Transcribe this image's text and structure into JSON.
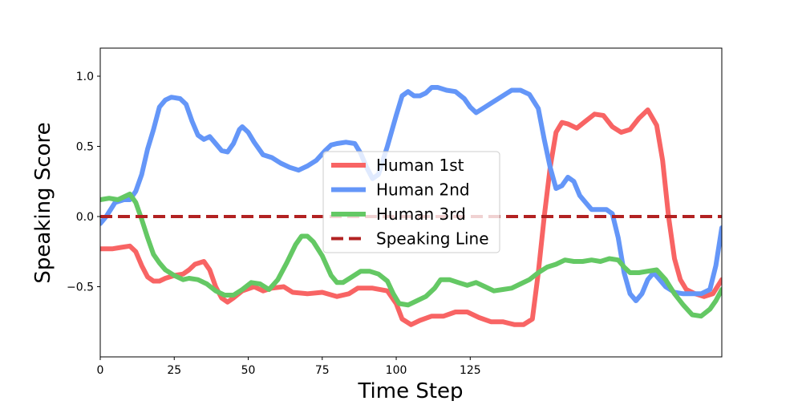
{
  "chart_data": {
    "type": "line",
    "title": "",
    "xlabel": "Time Step",
    "ylabel": "Speaking Score",
    "xlim": [
      0,
      210
    ],
    "ylim": [
      -1.0,
      1.2
    ],
    "x_ticks": [
      0,
      25,
      50,
      75,
      100,
      125
    ],
    "y_ticks": [
      -0.5,
      0.0,
      0.5,
      1.0
    ],
    "x_tick_labels": [
      "0",
      "25",
      "50",
      "75",
      "100",
      "125"
    ],
    "y_tick_labels": [
      "−0.5",
      "0.0",
      "0.5",
      "1.0"
    ],
    "grid": false,
    "legend_position": "center",
    "series": [
      {
        "name": "Human 1st",
        "color": "#f86464",
        "style": "solid",
        "points": [
          [
            0,
            -0.23
          ],
          [
            4,
            -0.23
          ],
          [
            7,
            -0.22
          ],
          [
            10,
            -0.21
          ],
          [
            12,
            -0.25
          ],
          [
            14,
            -0.35
          ],
          [
            16,
            -0.43
          ],
          [
            18,
            -0.46
          ],
          [
            20,
            -0.46
          ],
          [
            22,
            -0.44
          ],
          [
            25,
            -0.42
          ],
          [
            28,
            -0.41
          ],
          [
            30,
            -0.38
          ],
          [
            32,
            -0.34
          ],
          [
            35,
            -0.32
          ],
          [
            37,
            -0.38
          ],
          [
            39,
            -0.5
          ],
          [
            41,
            -0.58
          ],
          [
            43,
            -0.61
          ],
          [
            45,
            -0.58
          ],
          [
            48,
            -0.53
          ],
          [
            52,
            -0.5
          ],
          [
            55,
            -0.53
          ],
          [
            58,
            -0.51
          ],
          [
            62,
            -0.5
          ],
          [
            65,
            -0.54
          ],
          [
            70,
            -0.55
          ],
          [
            75,
            -0.54
          ],
          [
            80,
            -0.57
          ],
          [
            84,
            -0.55
          ],
          [
            87,
            -0.51
          ],
          [
            92,
            -0.51
          ],
          [
            97,
            -0.53
          ],
          [
            100,
            -0.62
          ],
          [
            102,
            -0.73
          ],
          [
            105,
            -0.77
          ],
          [
            108,
            -0.74
          ],
          [
            112,
            -0.71
          ],
          [
            116,
            -0.71
          ],
          [
            120,
            -0.68
          ],
          [
            124,
            -0.68
          ],
          [
            128,
            -0.72
          ],
          [
            132,
            -0.75
          ],
          [
            136,
            -0.75
          ],
          [
            140,
            -0.77
          ],
          [
            143,
            -0.77
          ],
          [
            146,
            -0.73
          ],
          [
            148,
            -0.4
          ],
          [
            150,
            0.0
          ],
          [
            152,
            0.35
          ],
          [
            154,
            0.6
          ],
          [
            156,
            0.67
          ],
          [
            158,
            0.66
          ],
          [
            161,
            0.63
          ],
          [
            164,
            0.68
          ],
          [
            167,
            0.73
          ],
          [
            170,
            0.72
          ],
          [
            173,
            0.64
          ],
          [
            176,
            0.6
          ],
          [
            179,
            0.62
          ],
          [
            182,
            0.7
          ],
          [
            185,
            0.76
          ],
          [
            188,
            0.65
          ],
          [
            190,
            0.4
          ],
          [
            192,
            0.0
          ],
          [
            194,
            -0.3
          ],
          [
            196,
            -0.45
          ],
          [
            198,
            -0.52
          ],
          [
            201,
            -0.55
          ],
          [
            204,
            -0.57
          ],
          [
            207,
            -0.55
          ],
          [
            210,
            -0.45
          ]
        ]
      },
      {
        "name": "Human 2nd",
        "color": "#6496f8",
        "style": "solid",
        "points": [
          [
            0,
            -0.05
          ],
          [
            2,
            0.0
          ],
          [
            5,
            0.1
          ],
          [
            8,
            0.12
          ],
          [
            10,
            0.12
          ],
          [
            12,
            0.18
          ],
          [
            14,
            0.3
          ],
          [
            16,
            0.48
          ],
          [
            18,
            0.62
          ],
          [
            20,
            0.78
          ],
          [
            22,
            0.83
          ],
          [
            24,
            0.85
          ],
          [
            27,
            0.84
          ],
          [
            29,
            0.8
          ],
          [
            31,
            0.68
          ],
          [
            33,
            0.58
          ],
          [
            35,
            0.55
          ],
          [
            37,
            0.57
          ],
          [
            39,
            0.52
          ],
          [
            41,
            0.47
          ],
          [
            43,
            0.46
          ],
          [
            45,
            0.52
          ],
          [
            47,
            0.62
          ],
          [
            48,
            0.64
          ],
          [
            50,
            0.6
          ],
          [
            52,
            0.53
          ],
          [
            55,
            0.44
          ],
          [
            58,
            0.42
          ],
          [
            61,
            0.38
          ],
          [
            64,
            0.35
          ],
          [
            67,
            0.33
          ],
          [
            70,
            0.36
          ],
          [
            73,
            0.4
          ],
          [
            76,
            0.47
          ],
          [
            78,
            0.51
          ],
          [
            80,
            0.52
          ],
          [
            83,
            0.53
          ],
          [
            86,
            0.52
          ],
          [
            88,
            0.45
          ],
          [
            90,
            0.35
          ],
          [
            92,
            0.27
          ],
          [
            94,
            0.3
          ],
          [
            97,
            0.5
          ],
          [
            100,
            0.72
          ],
          [
            102,
            0.86
          ],
          [
            104,
            0.89
          ],
          [
            106,
            0.86
          ],
          [
            108,
            0.86
          ],
          [
            110,
            0.88
          ],
          [
            112,
            0.92
          ],
          [
            114,
            0.92
          ],
          [
            117,
            0.9
          ],
          [
            120,
            0.89
          ],
          [
            123,
            0.84
          ],
          [
            125,
            0.78
          ],
          [
            127,
            0.74
          ],
          [
            130,
            0.78
          ],
          [
            133,
            0.82
          ],
          [
            136,
            0.86
          ],
          [
            139,
            0.9
          ],
          [
            142,
            0.9
          ],
          [
            145,
            0.87
          ],
          [
            148,
            0.77
          ],
          [
            150,
            0.55
          ],
          [
            152,
            0.35
          ],
          [
            154,
            0.2
          ],
          [
            156,
            0.22
          ],
          [
            158,
            0.28
          ],
          [
            160,
            0.25
          ],
          [
            162,
            0.15
          ],
          [
            164,
            0.1
          ],
          [
            166,
            0.05
          ],
          [
            168,
            0.05
          ],
          [
            171,
            0.05
          ],
          [
            173,
            0.02
          ],
          [
            175,
            -0.15
          ],
          [
            177,
            -0.4
          ],
          [
            179,
            -0.55
          ],
          [
            181,
            -0.6
          ],
          [
            183,
            -0.55
          ],
          [
            185,
            -0.45
          ],
          [
            187,
            -0.4
          ],
          [
            189,
            -0.45
          ],
          [
            191,
            -0.5
          ],
          [
            194,
            -0.54
          ],
          [
            197,
            -0.55
          ],
          [
            200,
            -0.55
          ],
          [
            203,
            -0.55
          ],
          [
            206,
            -0.52
          ],
          [
            208,
            -0.35
          ],
          [
            210,
            -0.08
          ]
        ]
      },
      {
        "name": "Human 3rd",
        "color": "#64c864",
        "style": "solid",
        "points": [
          [
            0,
            0.12
          ],
          [
            3,
            0.13
          ],
          [
            6,
            0.12
          ],
          [
            8,
            0.14
          ],
          [
            10,
            0.16
          ],
          [
            12,
            0.1
          ],
          [
            14,
            -0.02
          ],
          [
            16,
            -0.15
          ],
          [
            18,
            -0.27
          ],
          [
            20,
            -0.33
          ],
          [
            22,
            -0.38
          ],
          [
            25,
            -0.42
          ],
          [
            28,
            -0.45
          ],
          [
            30,
            -0.44
          ],
          [
            33,
            -0.45
          ],
          [
            36,
            -0.48
          ],
          [
            39,
            -0.53
          ],
          [
            42,
            -0.56
          ],
          [
            45,
            -0.56
          ],
          [
            48,
            -0.52
          ],
          [
            51,
            -0.47
          ],
          [
            54,
            -0.48
          ],
          [
            57,
            -0.52
          ],
          [
            60,
            -0.45
          ],
          [
            63,
            -0.33
          ],
          [
            66,
            -0.2
          ],
          [
            68,
            -0.14
          ],
          [
            70,
            -0.14
          ],
          [
            72,
            -0.18
          ],
          [
            75,
            -0.28
          ],
          [
            78,
            -0.42
          ],
          [
            80,
            -0.47
          ],
          [
            82,
            -0.47
          ],
          [
            85,
            -0.43
          ],
          [
            88,
            -0.39
          ],
          [
            91,
            -0.39
          ],
          [
            94,
            -0.41
          ],
          [
            97,
            -0.46
          ],
          [
            99,
            -0.55
          ],
          [
            101,
            -0.62
          ],
          [
            104,
            -0.63
          ],
          [
            107,
            -0.6
          ],
          [
            110,
            -0.57
          ],
          [
            113,
            -0.51
          ],
          [
            115,
            -0.45
          ],
          [
            118,
            -0.45
          ],
          [
            121,
            -0.47
          ],
          [
            124,
            -0.49
          ],
          [
            127,
            -0.47
          ],
          [
            130,
            -0.5
          ],
          [
            133,
            -0.53
          ],
          [
            136,
            -0.52
          ],
          [
            139,
            -0.51
          ],
          [
            142,
            -0.48
          ],
          [
            145,
            -0.45
          ],
          [
            148,
            -0.4
          ],
          [
            151,
            -0.36
          ],
          [
            154,
            -0.34
          ],
          [
            157,
            -0.31
          ],
          [
            160,
            -0.32
          ],
          [
            163,
            -0.32
          ],
          [
            166,
            -0.31
          ],
          [
            169,
            -0.32
          ],
          [
            172,
            -0.3
          ],
          [
            175,
            -0.31
          ],
          [
            177,
            -0.36
          ],
          [
            179,
            -0.4
          ],
          [
            182,
            -0.4
          ],
          [
            185,
            -0.39
          ],
          [
            188,
            -0.38
          ],
          [
            191,
            -0.45
          ],
          [
            194,
            -0.55
          ],
          [
            197,
            -0.63
          ],
          [
            200,
            -0.7
          ],
          [
            203,
            -0.71
          ],
          [
            206,
            -0.66
          ],
          [
            208,
            -0.6
          ],
          [
            210,
            -0.52
          ]
        ]
      },
      {
        "name": "Speaking Line",
        "color": "#b22222",
        "style": "dashed",
        "points": [
          [
            0,
            0.0
          ],
          [
            210,
            0.0
          ]
        ]
      }
    ]
  }
}
